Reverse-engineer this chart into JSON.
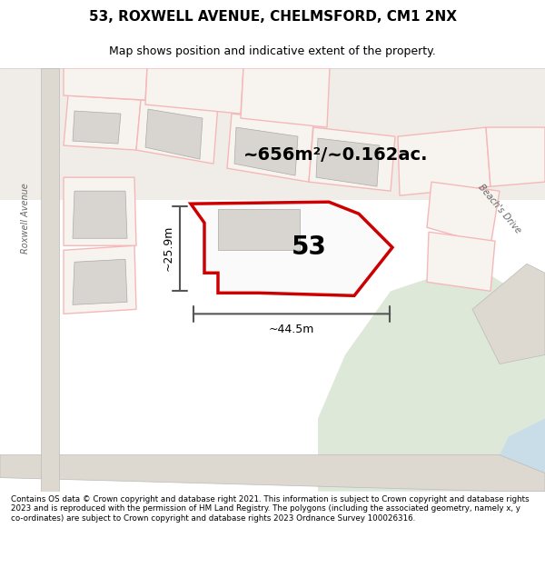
{
  "title_line1": "53, ROXWELL AVENUE, CHELMSFORD, CM1 2NX",
  "title_line2": "Map shows position and indicative extent of the property.",
  "area_label": "~656m²/~0.162ac.",
  "number_label": "53",
  "dim_vertical": "~25.9m",
  "dim_horizontal": "~44.5m",
  "footer_text": "Contains OS data © Crown copyright and database right 2021. This information is subject to Crown copyright and database rights 2023 and is reproduced with the permission of HM Land Registry. The polygons (including the associated geometry, namely x, y co-ordinates) are subject to Crown copyright and database rights 2023 Ordnance Survey 100026316.",
  "bg_color": "#f0ede8",
  "map_bg": "#f5f2ee",
  "footer_bg": "#ffffff",
  "red_plot": "#cc0000",
  "light_red": "#f5b8b8",
  "gray_lines": "#888888",
  "building_fill": "#d8d5d0",
  "road_fill": "#e8e4de",
  "green_area": "#dde8d8",
  "water_color": "#c8dde8"
}
